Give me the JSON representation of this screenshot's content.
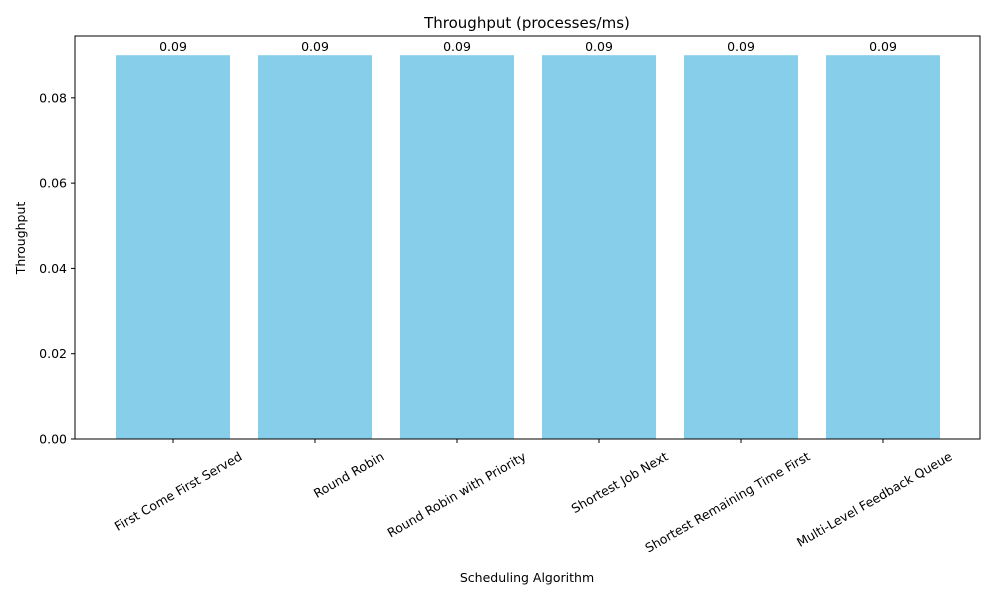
{
  "chart_data": {
    "type": "bar",
    "title": "Throughput (processes/ms)",
    "xlabel": "Scheduling Algorithm",
    "ylabel": "Throughput",
    "categories": [
      "First Come First Served",
      "Round Robin",
      "Round Robin with Priority",
      "Shortest Job Next",
      "Shortest Remaining Time First",
      "Multi-Level Feedback Queue"
    ],
    "values": [
      0.09,
      0.09,
      0.09,
      0.09,
      0.09,
      0.09
    ],
    "data_labels": [
      "0.09",
      "0.09",
      "0.09",
      "0.09",
      "0.09",
      "0.09"
    ],
    "ylim": [
      0,
      0.0945
    ],
    "yticks": [
      0.0,
      0.02,
      0.04,
      0.06,
      0.08
    ],
    "ytick_labels": [
      "0.00",
      "0.02",
      "0.04",
      "0.06",
      "0.08"
    ],
    "bar_color": "#87ceeb",
    "grid": false,
    "legend": "none"
  }
}
